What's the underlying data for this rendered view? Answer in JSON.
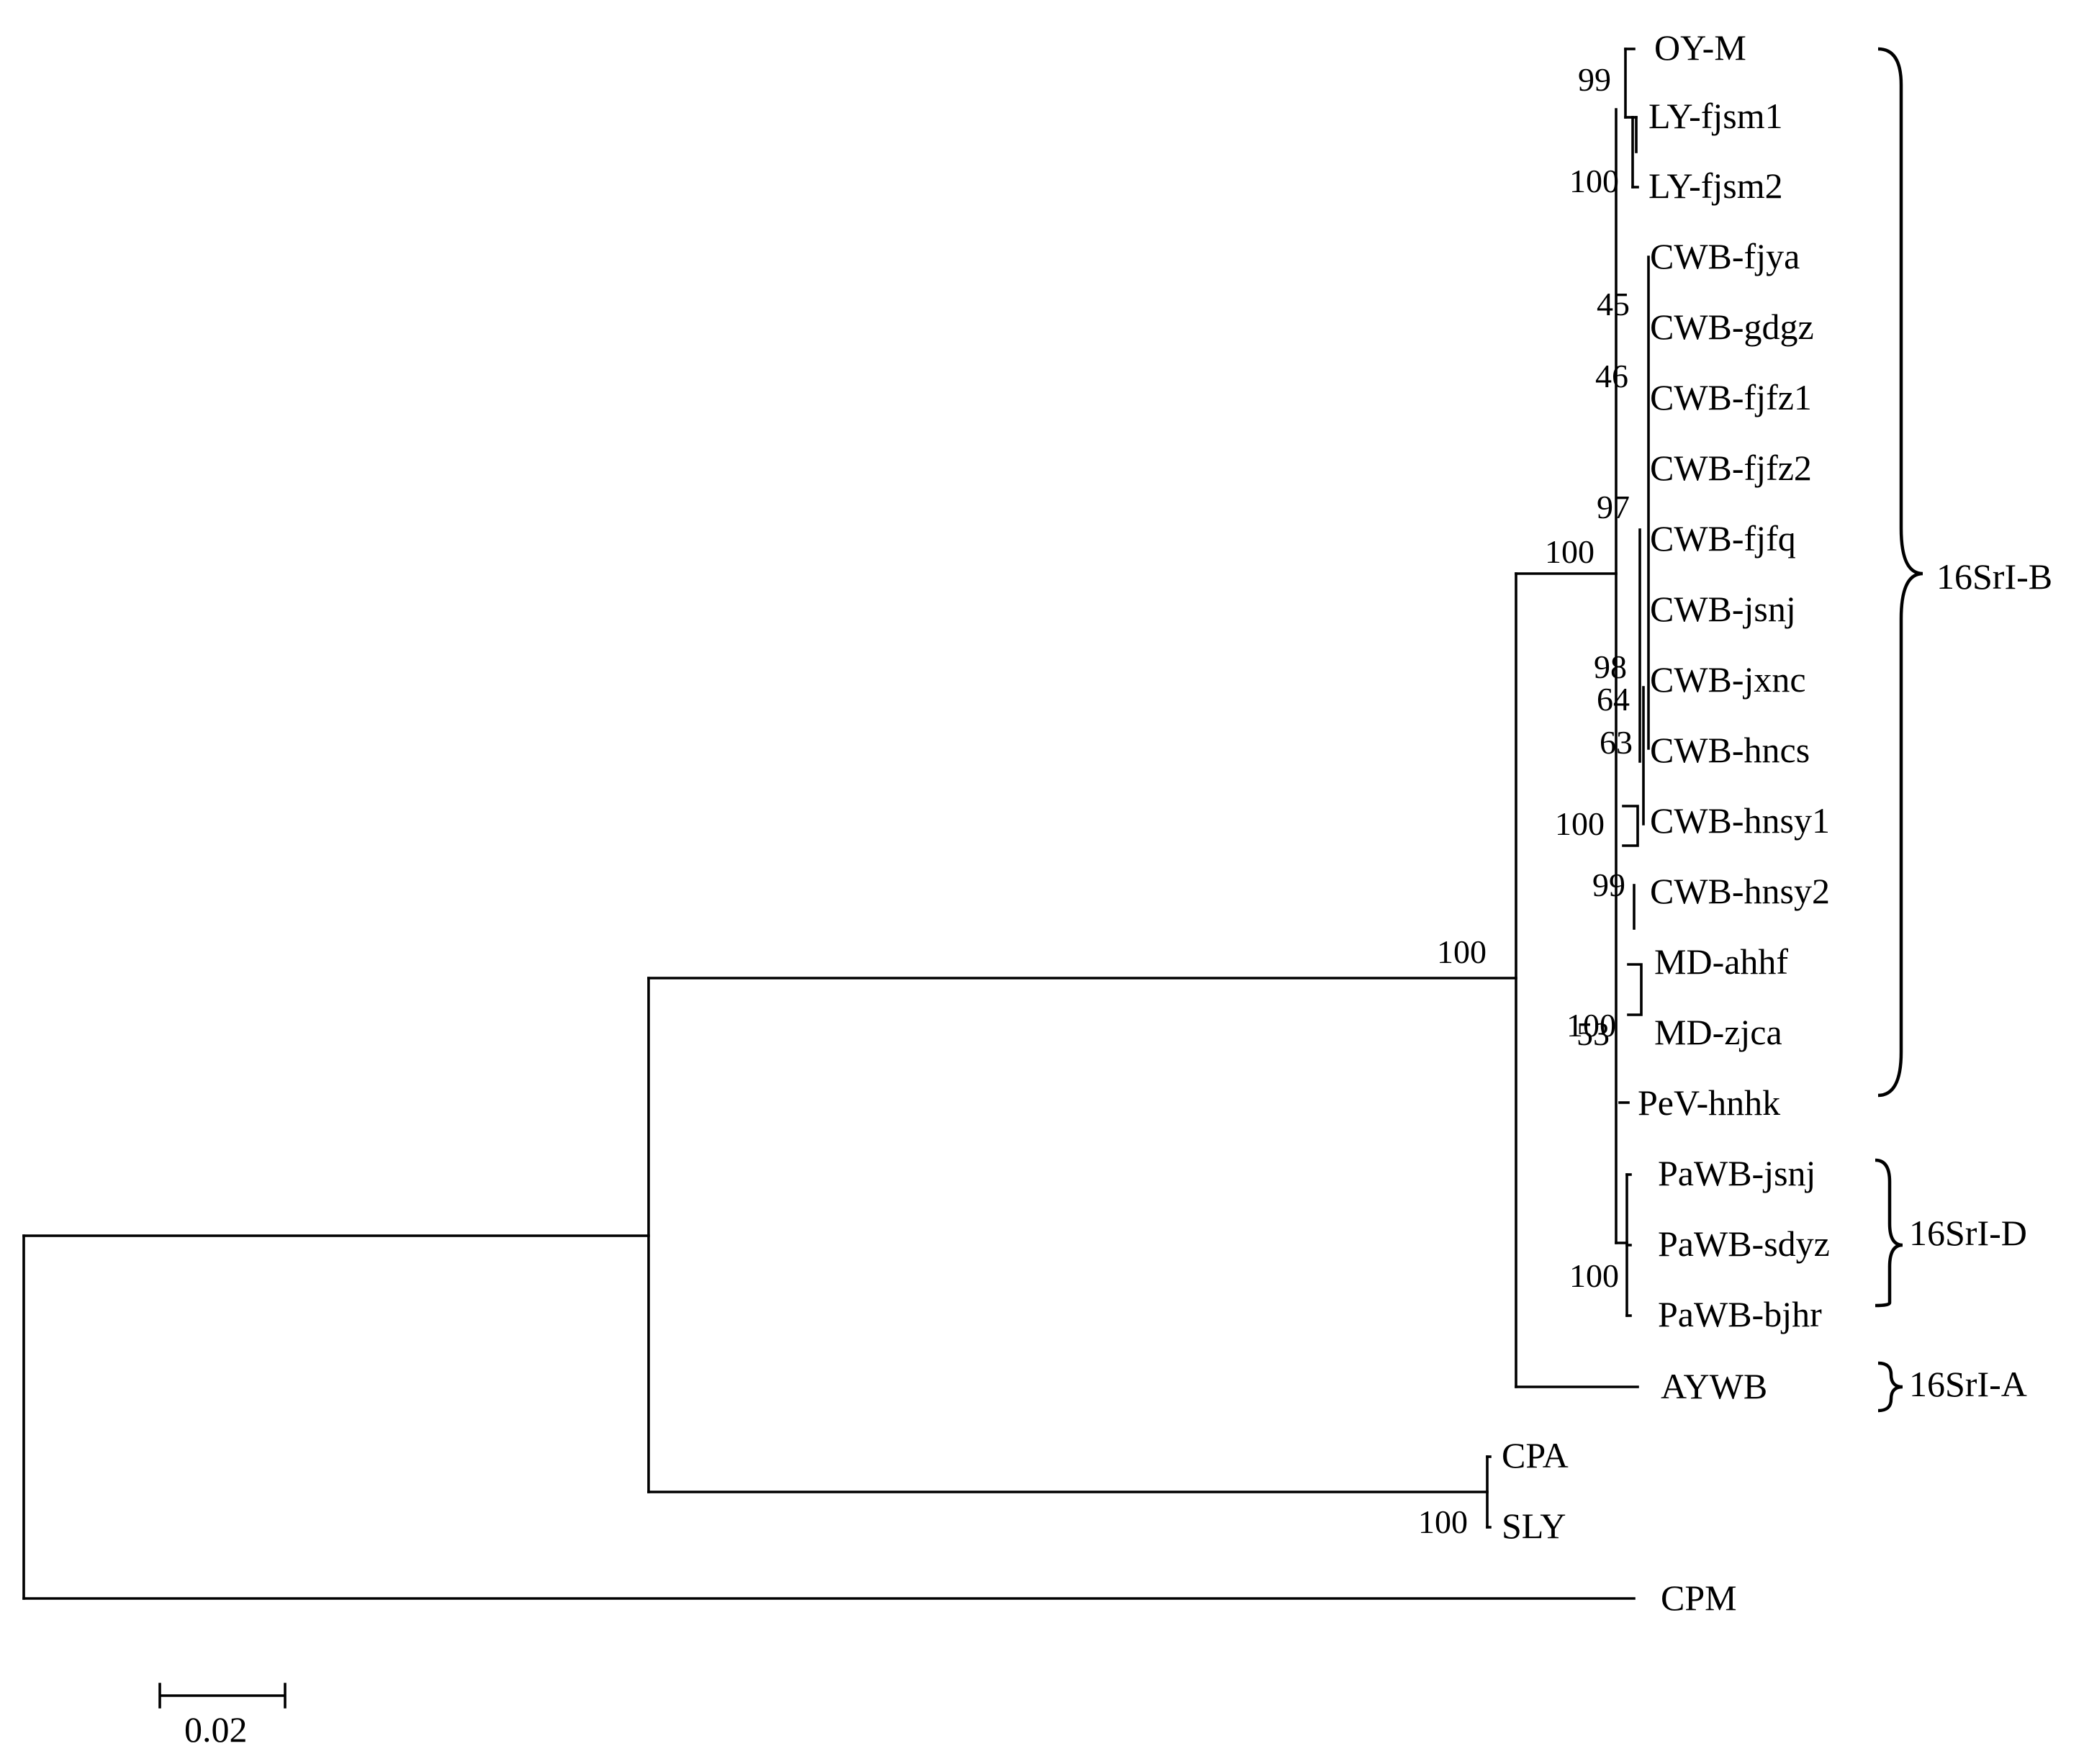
{
  "tree": {
    "leaves": [
      {
        "id": "oym",
        "label": "OY-M"
      },
      {
        "id": "lyfjsm1",
        "label": "LY-fjsm1"
      },
      {
        "id": "lyfjsm2",
        "label": "LY-fjsm2"
      },
      {
        "id": "cwbfjya",
        "label": "CWB-fjya"
      },
      {
        "id": "cwbgdgz",
        "label": "CWB-gdgz"
      },
      {
        "id": "cwbfjfz1",
        "label": "CWB-fjfz1"
      },
      {
        "id": "cwbfjfz2",
        "label": "CWB-fjfz2"
      },
      {
        "id": "cwbfjfq",
        "label": "CWB-fjfq"
      },
      {
        "id": "cwbjsnj",
        "label": "CWB-jsnj"
      },
      {
        "id": "cwbjxnc",
        "label": "CWB-jxnc"
      },
      {
        "id": "cwbhncs",
        "label": "CWB-hncs"
      },
      {
        "id": "cwbhnsy1",
        "label": "CWB-hnsy1"
      },
      {
        "id": "cwbhnsy2",
        "label": "CWB-hnsy2"
      },
      {
        "id": "mdahhf",
        "label": "MD-ahhf"
      },
      {
        "id": "mdzjca",
        "label": "MD-zjca"
      },
      {
        "id": "pevhnhk",
        "label": "PeV-hnhk"
      },
      {
        "id": "pawbjsnj",
        "label": "PaWB-jsnj"
      },
      {
        "id": "pawbsdyz",
        "label": "PaWB-sdyz"
      },
      {
        "id": "pawbbjhr",
        "label": "PaWB-bjhr"
      },
      {
        "id": "aywb",
        "label": "AYWB"
      },
      {
        "id": "cpa",
        "label": "CPA"
      },
      {
        "id": "sly",
        "label": "SLY"
      },
      {
        "id": "cpm",
        "label": "CPM"
      }
    ],
    "bootstrap": [
      "99",
      "100",
      "45",
      "46",
      "97",
      "100",
      "98",
      "64",
      "63",
      "100",
      "99",
      "100",
      "53",
      "100",
      "100",
      "100"
    ],
    "groups": [
      "16SrI-B",
      "16SrI-D",
      "16SrI-A"
    ],
    "scale_bar": {
      "label": "0.02",
      "value": 0.02
    }
  }
}
